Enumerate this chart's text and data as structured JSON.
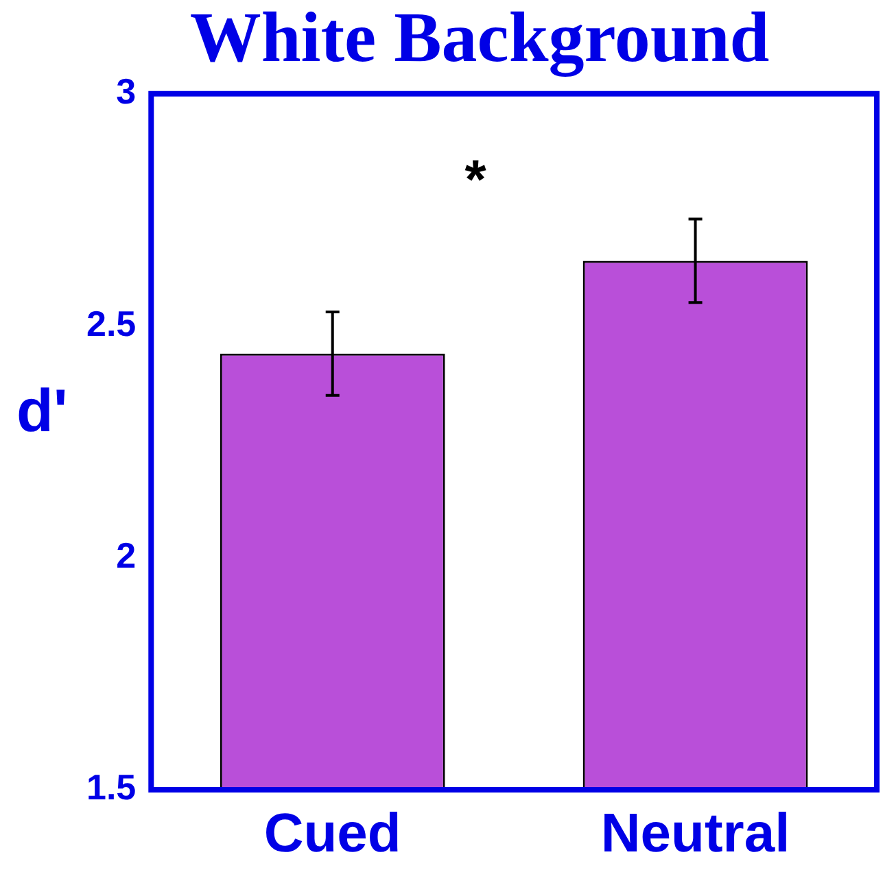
{
  "chart_data": {
    "type": "bar",
    "title": "White Background",
    "ylabel": "d'",
    "categories": [
      "Cued",
      "Neutral"
    ],
    "values": [
      2.44,
      2.64
    ],
    "errors": [
      0.09,
      0.09
    ],
    "color": "#b94fd9",
    "ylim": [
      1.5,
      3
    ],
    "yticks": [
      1.5,
      2,
      2.5,
      3
    ],
    "grid": false,
    "legend": false,
    "annotations": [
      "*"
    ]
  }
}
